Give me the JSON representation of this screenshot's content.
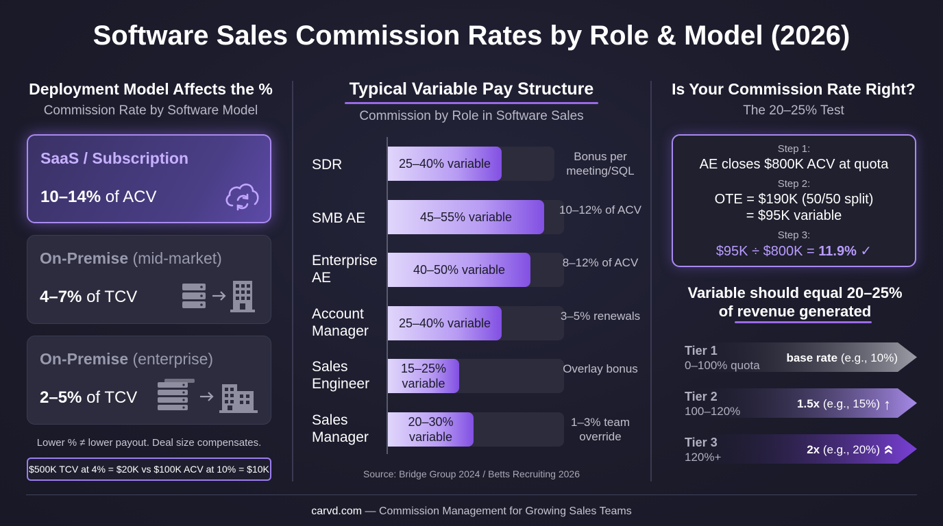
{
  "title": "Software Sales Commission Rates by Role & Model (2026)",
  "left": {
    "title": "Deployment Model Affects the %",
    "subtitle": "Commission Rate by Software Model",
    "cards": [
      {
        "name": "SaaS / Subscription",
        "qualifier": "",
        "rate": "10–14%",
        "basis": "of ACV",
        "icon": "cloud-sync-icon"
      },
      {
        "name": "On-Premise",
        "qualifier": "(mid-market)",
        "rate": "4–7%",
        "basis": "of TCV",
        "icon": "server-to-building-icon"
      },
      {
        "name": "On-Premise",
        "qualifier": "(enterprise)",
        "rate": "2–5%",
        "basis": "of TCV",
        "icon": "server-stack-to-building-icon"
      }
    ],
    "note": "Lower % ≠ lower payout. Deal size compensates.",
    "example": "$500K TCV at 4% = $20K vs $100K ACV at 10% = $10K"
  },
  "middle": {
    "title": "Typical Variable Pay Structure",
    "subtitle": "Commission by Role in Software Sales",
    "roles": [
      {
        "role": "SDR",
        "label": "25–40% variable",
        "low": 25,
        "high": 40,
        "note": "Bonus per meeting/SQL"
      },
      {
        "role": "SMB AE",
        "label": "45–55% variable",
        "low": 45,
        "high": 55,
        "note": "10–12% of ACV"
      },
      {
        "role": "Enterprise AE",
        "label": "40–50% variable",
        "low": 40,
        "high": 50,
        "note": "8–12% of ACV"
      },
      {
        "role": "Account Manager",
        "label": "25–40% variable",
        "low": 25,
        "high": 40,
        "note": "3–5% renewals"
      },
      {
        "role": "Sales Engineer",
        "label": "15–25% variable",
        "low": 15,
        "high": 25,
        "note": "Overlay bonus"
      },
      {
        "role": "Sales Manager",
        "label": "20–30% variable",
        "low": 20,
        "high": 30,
        "note": "1–3% team override"
      }
    ],
    "source": "Source: Bridge Group 2024 / Betts Recruiting 2026"
  },
  "right": {
    "title": "Is Your Commission Rate Right?",
    "subtitle": "The 20–25% Test",
    "steps": [
      {
        "label": "Step 1:",
        "lines": [
          "AE closes $800K ACV at quota"
        ]
      },
      {
        "label": "Step 2:",
        "lines": [
          "OTE = $190K (50/50 split)",
          "= $95K variable"
        ]
      },
      {
        "label": "Step 3:",
        "result_prefix": "$95K ÷ $800K = ",
        "result_value": "11.9% ✓"
      }
    ],
    "variable_heading_1": "Variable should equal 20–25%",
    "variable_heading_2": "of revenue generated",
    "tiers": [
      {
        "name": "Tier 1",
        "range": "0–100% quota",
        "rate_bold": "base rate",
        "rate_detail": "(e.g., 10%)",
        "icon": ""
      },
      {
        "name": "Tier 2",
        "range": "100–120%",
        "rate_bold": "1.5x",
        "rate_detail": "(e.g., 15%)",
        "icon": "↑"
      },
      {
        "name": "Tier 3",
        "range": "120%+",
        "rate_bold": "2x",
        "rate_detail": "(e.g., 20%)",
        "icon": "»"
      }
    ]
  },
  "footer": {
    "brand": "carvd.com",
    "tagline": " — Commission Management for Growing Sales Teams"
  }
}
